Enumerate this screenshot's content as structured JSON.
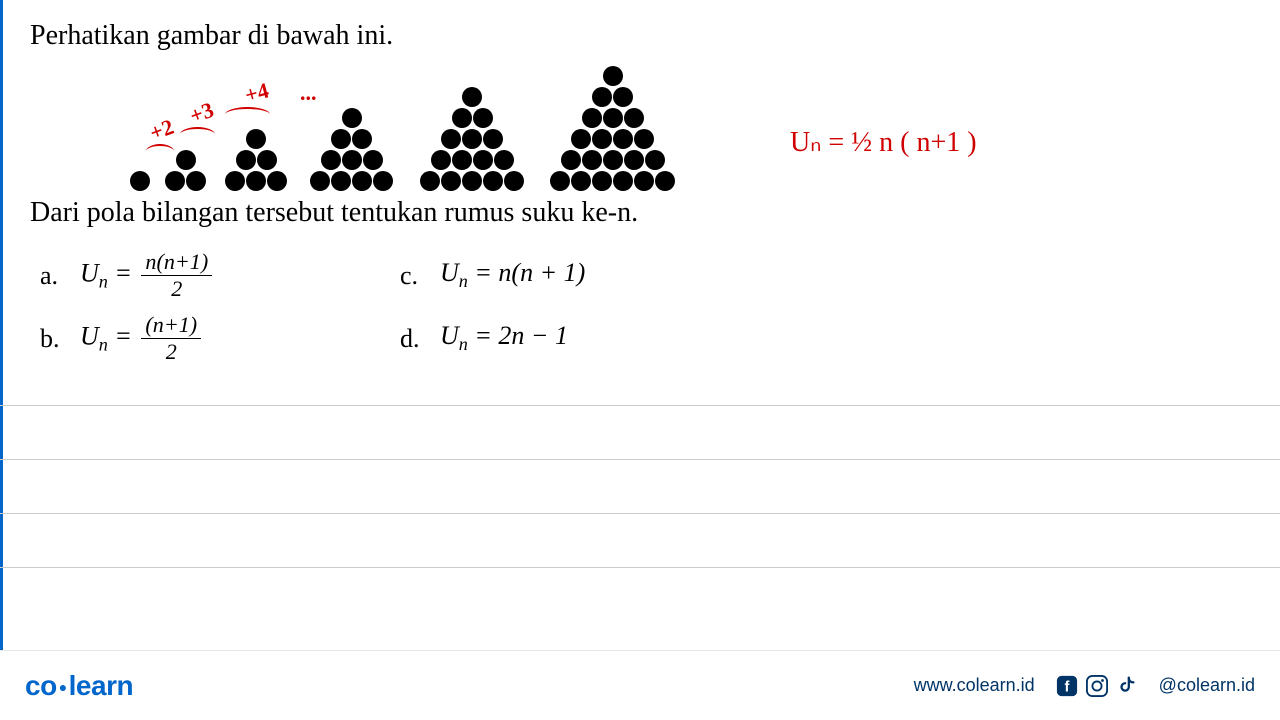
{
  "instruction": "Perhatikan gambar di bawah ini.",
  "question": "Dari pola bilangan tersebut tentukan rumus suku ke-n.",
  "annotations": {
    "a1": "+2",
    "a2": "+3",
    "a3": "+4",
    "dots": "..."
  },
  "handwritten": "Uₙ = ½ n ( n+1 )",
  "options": {
    "a": {
      "label": "a.",
      "formula_type": "frac_n_n1_2"
    },
    "b": {
      "label": "b.",
      "formula_type": "frac_n1_2"
    },
    "c": {
      "label": "c.",
      "formula_type": "n_n1"
    },
    "d": {
      "label": "d.",
      "formula_type": "2n_1"
    }
  },
  "triangles": [
    1,
    2,
    3,
    4,
    5,
    6
  ],
  "colors": {
    "dot": "#000000",
    "annotation": "#d00000",
    "brand": "#0066cc",
    "footer_text": "#003366",
    "rule": "#cccccc"
  },
  "footer": {
    "logo_part1": "co",
    "logo_part2": "learn",
    "website": "www.colearn.id",
    "handle": "@colearn.id"
  }
}
